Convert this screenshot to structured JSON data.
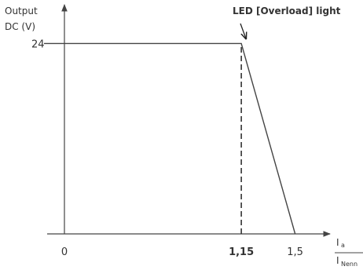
{
  "chart_data": {
    "type": "line",
    "ylabel_lines": [
      "Output",
      "DC (V)"
    ],
    "xlabel_numerator": "I",
    "xlabel_numerator_sub": "a",
    "xlabel_denominator": "I",
    "xlabel_denominator_sub": "Nenn",
    "x_ticks": [
      {
        "value": 0,
        "label": "0",
        "bold": false
      },
      {
        "value": 1.15,
        "label": "1,15",
        "bold": true
      },
      {
        "value": 1.5,
        "label": "1,5",
        "bold": false
      }
    ],
    "y_ticks": [
      {
        "value": 24,
        "label": "24"
      }
    ],
    "xlim": [
      0,
      1.65
    ],
    "ylim": [
      0,
      28.3
    ],
    "series": [
      {
        "x": [
          0,
          1.15,
          1.5
        ],
        "y": [
          24,
          24,
          0
        ]
      }
    ],
    "marker_line": {
      "x": 1.15,
      "style": "dashed"
    },
    "annotation": {
      "text": "LED [Overload] light",
      "x": 1.15,
      "y": 24
    },
    "grid": false
  }
}
